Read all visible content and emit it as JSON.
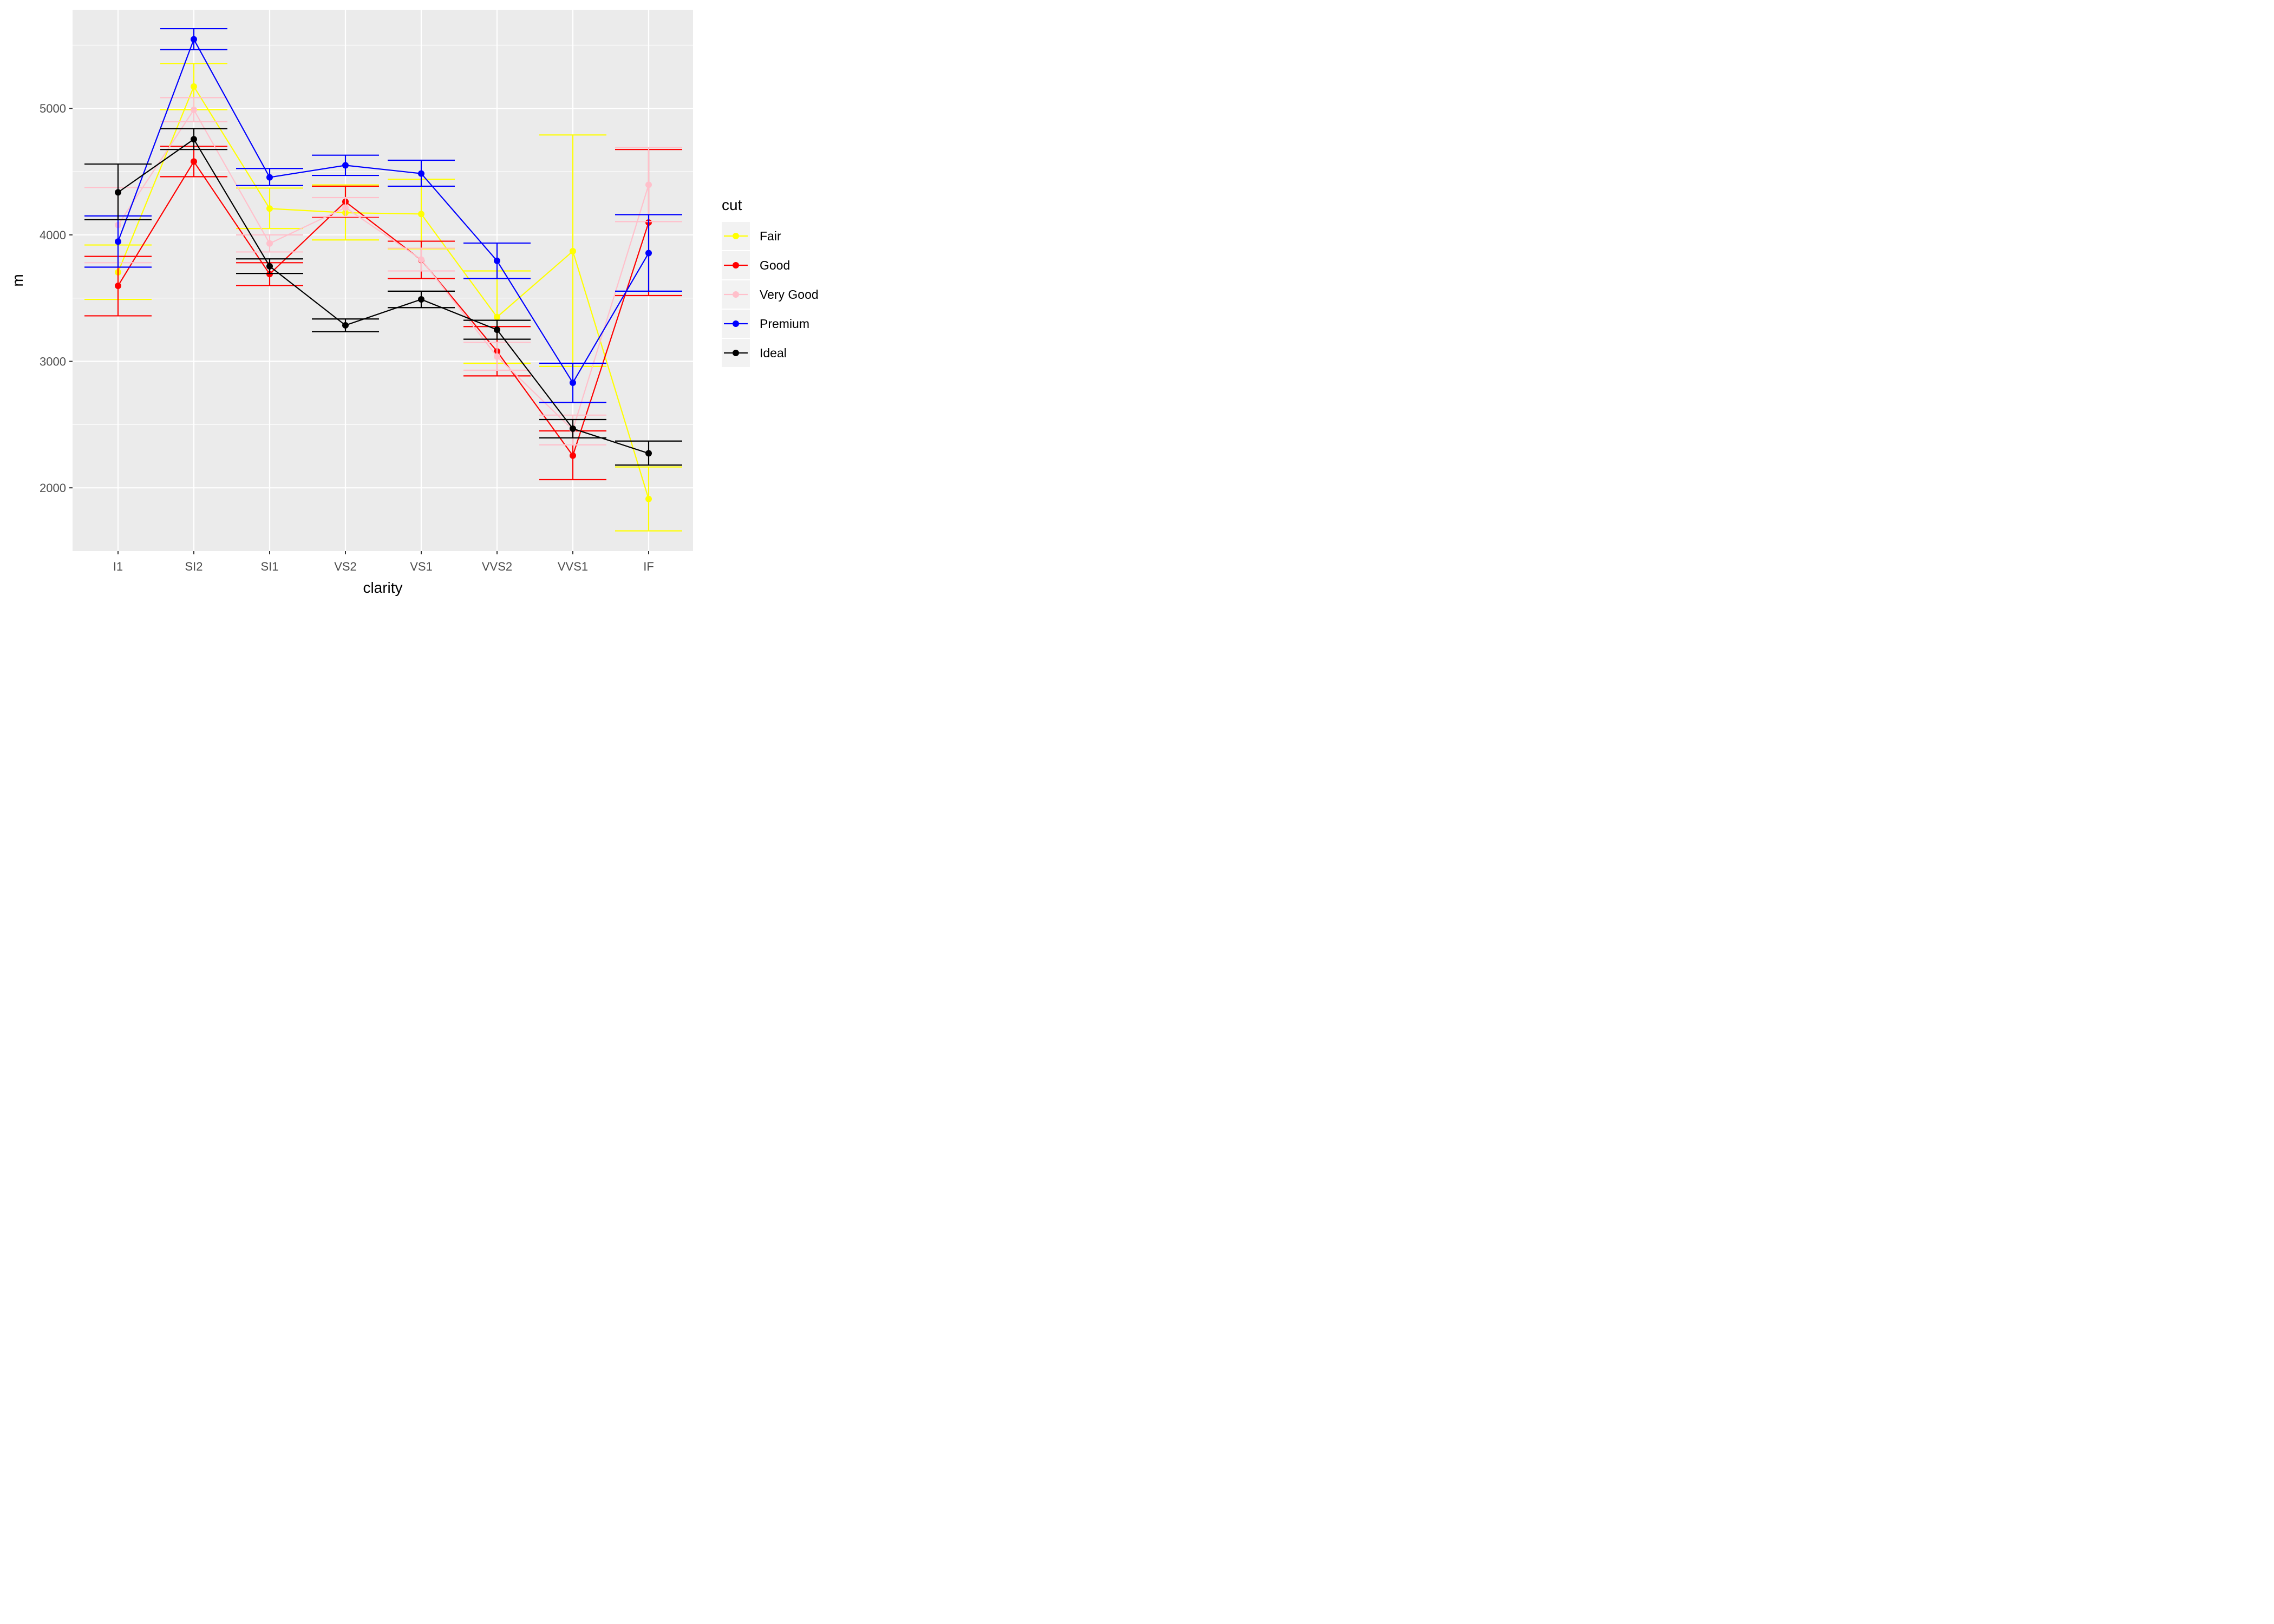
{
  "chart_data": {
    "type": "line",
    "xlabel": "clarity",
    "ylabel": "m",
    "categories": [
      "I1",
      "SI2",
      "SI1",
      "VS2",
      "VS1",
      "VVS2",
      "VVS1",
      "IF"
    ],
    "ylim": [
      1500,
      5780
    ],
    "yticks": [
      2000,
      3000,
      4000,
      5000
    ],
    "grid": true,
    "legend": {
      "title": "cut",
      "position": "right"
    },
    "series": [
      {
        "name": "Fair",
        "color": "#FFFF00",
        "values": [
          3704,
          5173,
          4208,
          4175,
          4165,
          3350,
          3871,
          1912
        ],
        "lower": [
          3490,
          4990,
          4050,
          3960,
          3890,
          2985,
          2960,
          1660
        ],
        "upper": [
          3920,
          5355,
          4370,
          4395,
          4440,
          3715,
          4790,
          2165
        ]
      },
      {
        "name": "Good",
        "color": "#FF0000",
        "values": [
          3597,
          4580,
          3690,
          4262,
          3801,
          3079,
          2255,
          4098
        ],
        "lower": [
          3360,
          4460,
          3600,
          4140,
          3655,
          2885,
          2065,
          3520
        ],
        "upper": [
          3830,
          4700,
          3780,
          4385,
          3950,
          3275,
          2450,
          4675
        ]
      },
      {
        "name": "Very Good",
        "color": "#FFC0CB",
        "values": [
          4078,
          4989,
          3932,
          4216,
          3805,
          3038,
          2459,
          4396
        ],
        "lower": [
          3780,
          4895,
          3865,
          4145,
          3715,
          2930,
          2340,
          4105
        ],
        "upper": [
          4375,
          5085,
          4000,
          4295,
          3895,
          3150,
          2575,
          4690
        ]
      },
      {
        "name": "Premium",
        "color": "#0000FF",
        "values": [
          3947,
          5546,
          4455,
          4550,
          4485,
          3795,
          2831,
          3856
        ],
        "lower": [
          3745,
          5465,
          4390,
          4470,
          4385,
          3655,
          2675,
          3555
        ],
        "upper": [
          4150,
          5630,
          4525,
          4630,
          4590,
          3935,
          2985,
          4160
        ]
      },
      {
        "name": "Ideal",
        "color": "#000000",
        "values": [
          4336,
          4756,
          3752,
          3285,
          3490,
          3250,
          2468,
          2273
        ],
        "lower": [
          4120,
          4675,
          3695,
          3235,
          3425,
          3175,
          2395,
          2180
        ],
        "upper": [
          4560,
          4840,
          3810,
          3335,
          3555,
          3325,
          2540,
          2370
        ]
      }
    ]
  }
}
